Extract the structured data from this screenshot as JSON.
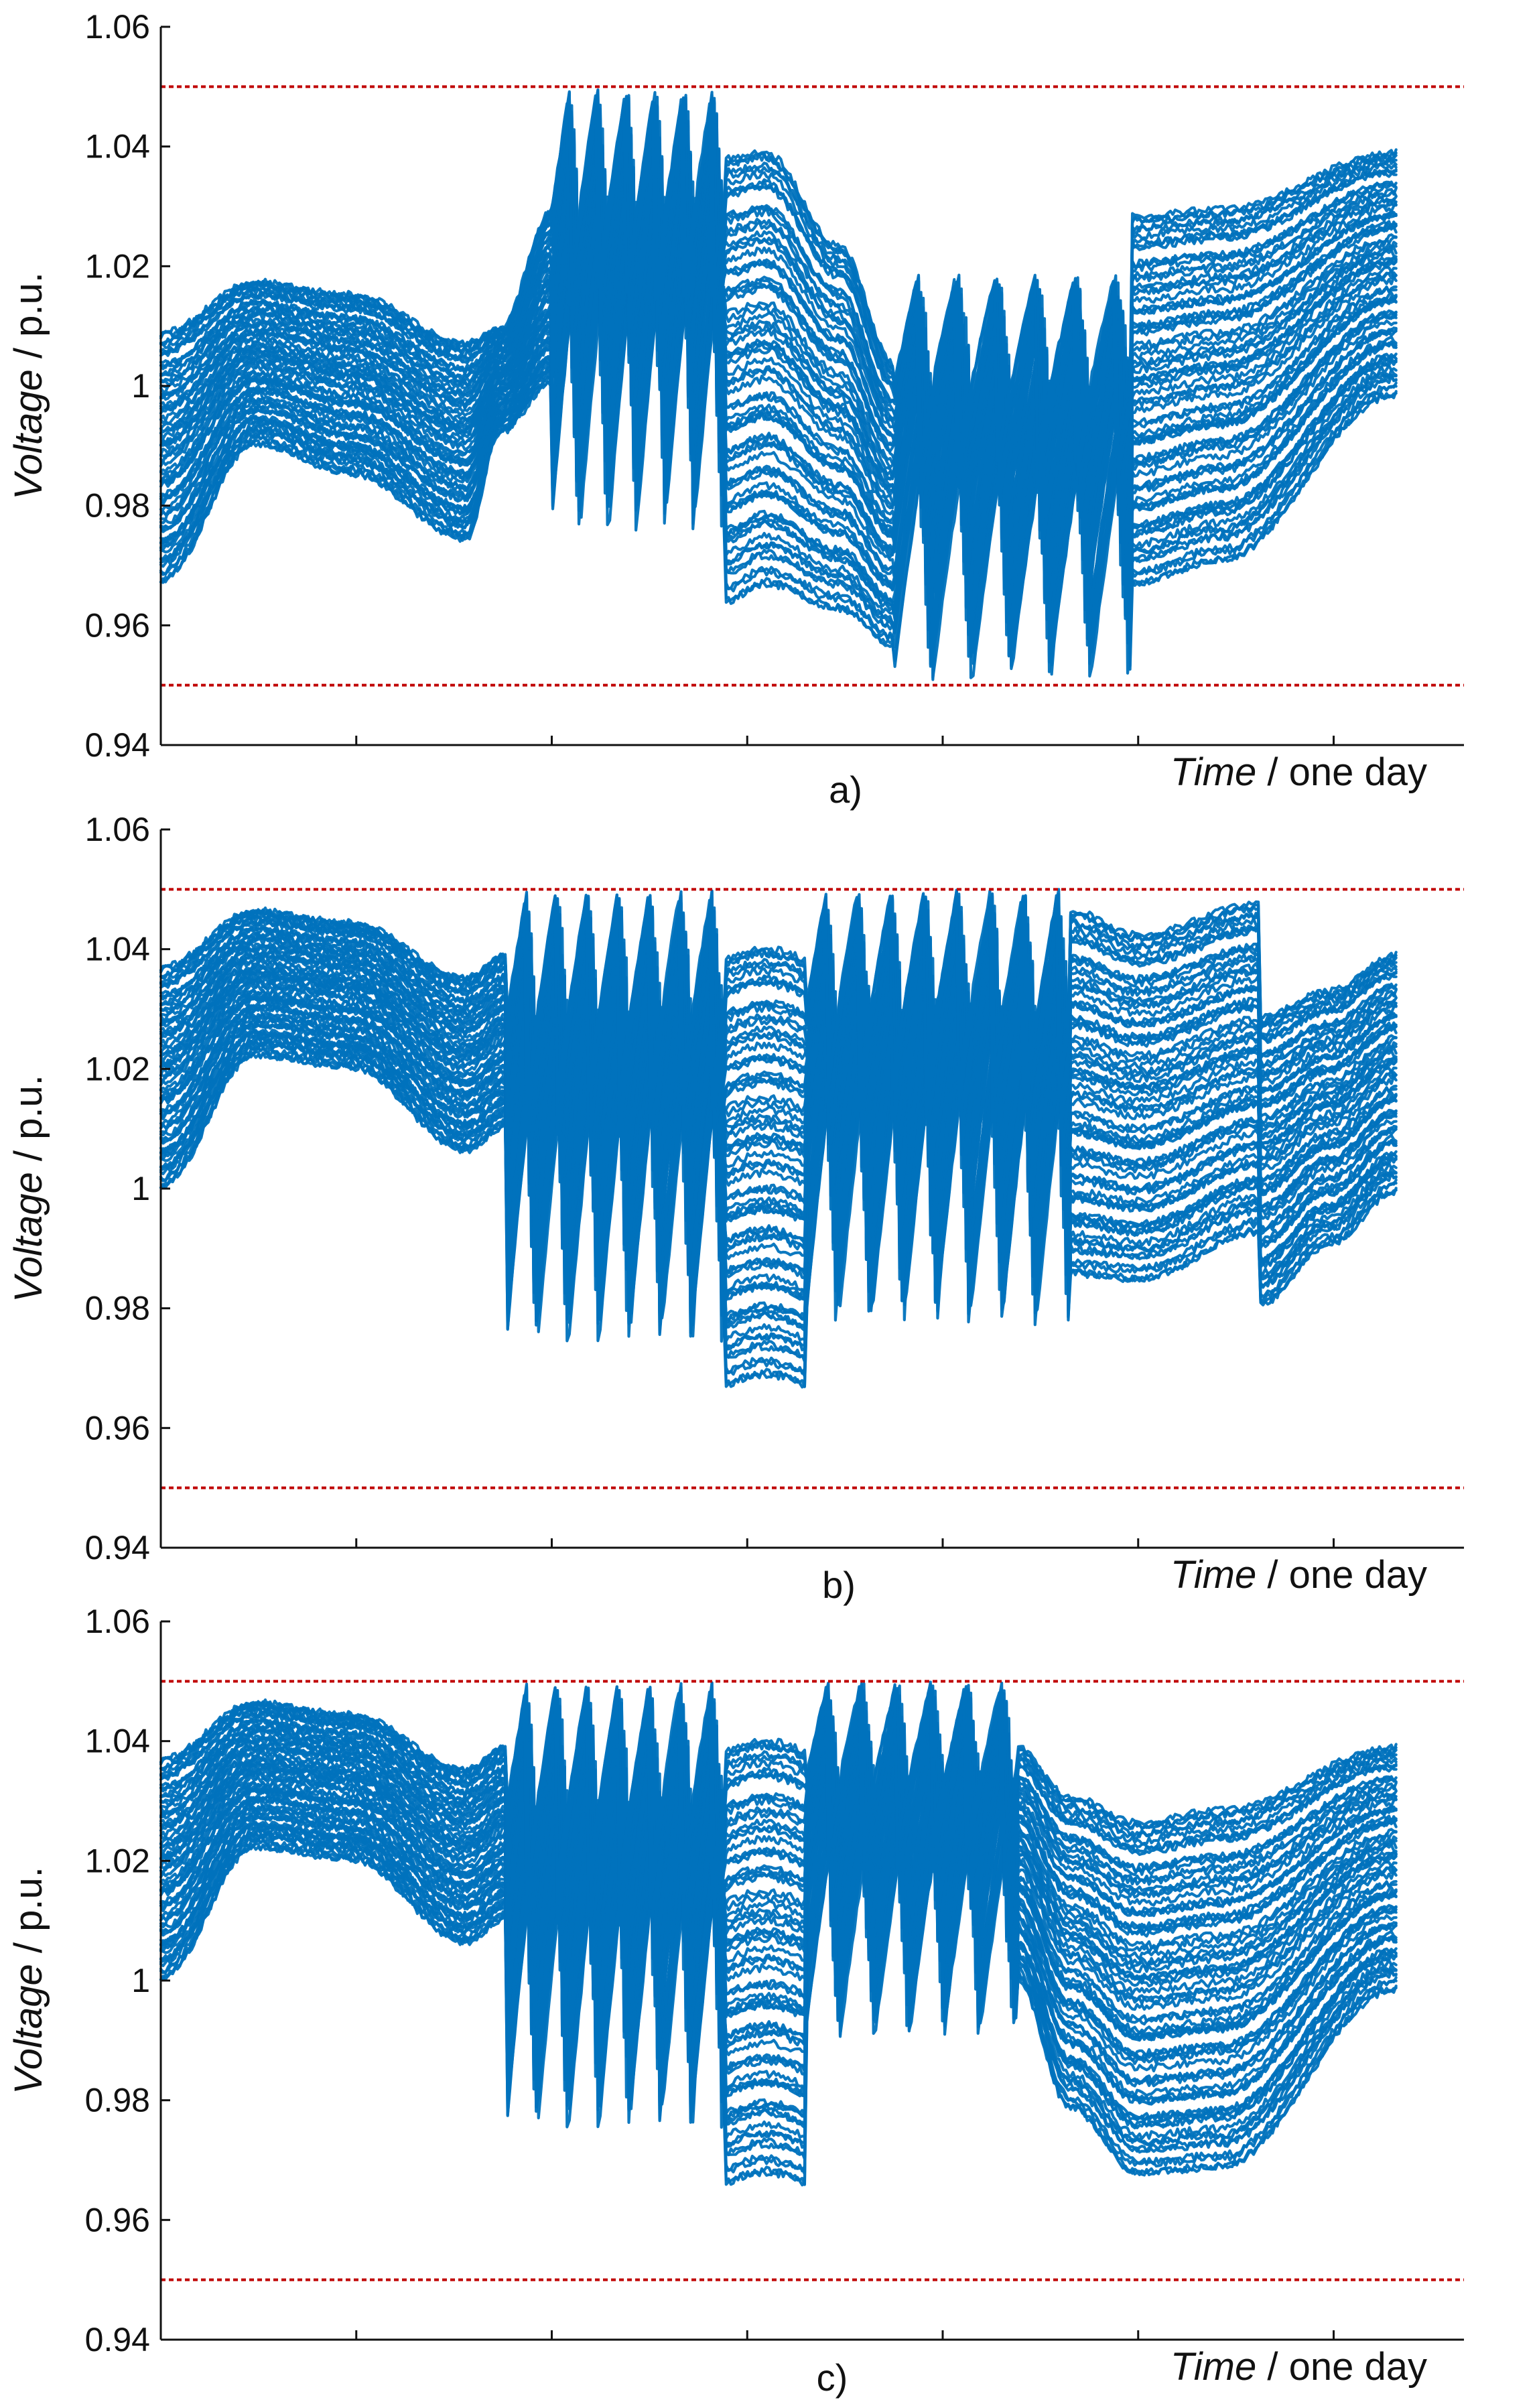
{
  "figure": {
    "line_color": "#0072BD",
    "limit_color": "#C00000",
    "axis_color": "#111111"
  },
  "chart_data": [
    {
      "type": "line",
      "panel_label": "a)",
      "xlabel_italic": "Time",
      "xlabel_rest": " / one day",
      "ylabel_italic": "Voltage",
      "ylabel_rest": " / p.u.",
      "ylim": [
        0.94,
        1.06
      ],
      "yticks": [
        0.94,
        0.96,
        0.98,
        1.0,
        1.02,
        1.04,
        1.06
      ],
      "ytick_labels": [
        "0.94",
        "0.96",
        "0.98",
        "1",
        "1.02",
        "1.04",
        "1.06"
      ],
      "xlim": [
        0,
        96
      ],
      "xticks": [
        0,
        14.4,
        28.8,
        43.2,
        57.6,
        72,
        86.4
      ],
      "upper_limit": 1.05,
      "lower_limit": 0.95,
      "x_end": 91,
      "n_buses": 72,
      "series_description": "Bus voltages of all network nodes over one day (one blue curve per bus); voltages spread between the dashed 0.95 and 1.05 p.u. limits",
      "segments": [
        {
          "x": [
            0,
            7,
            14,
            22.5
          ],
          "top": [
            1.01,
            1.018,
            1.016,
            1.008
          ],
          "bot": [
            0.967,
            0.99,
            0.985,
            0.974
          ]
        },
        {
          "x": [
            22.5,
            25,
            28.8
          ],
          "top": [
            1.008,
            1.01,
            1.03
          ],
          "bot": [
            0.974,
            0.992,
            1.0
          ],
          "ramp": "up"
        },
        {
          "x": [
            28.8,
            41.5
          ],
          "top": [
            1.05,
            1.05
          ],
          "bot": [
            0.975,
            0.975
          ],
          "teeth": 6
        },
        {
          "x": [
            41.5,
            44.5,
            50,
            54
          ],
          "top": [
            1.04,
            1.041,
            1.025,
            1.005
          ],
          "bot": [
            0.963,
            0.966,
            0.962,
            0.956
          ],
          "ramp": "down"
        },
        {
          "x": [
            54,
            71.5
          ],
          "top": [
            1.019,
            1.019
          ],
          "bot": [
            0.95,
            0.95
          ],
          "teeth": 6
        },
        {
          "x": [
            71.5,
            78,
            91
          ],
          "top": [
            1.03,
            1.031,
            1.04
          ],
          "bot": [
            0.966,
            0.97,
            0.998
          ]
        }
      ]
    },
    {
      "type": "line",
      "panel_label": "b)",
      "xlabel_italic": "Time",
      "xlabel_rest": " / one day",
      "ylabel_italic": "Voltage",
      "ylabel_rest": " / p.u.",
      "ylim": [
        0.94,
        1.06
      ],
      "yticks": [
        0.94,
        0.96,
        0.98,
        1.0,
        1.02,
        1.04,
        1.06
      ],
      "ytick_labels": [
        "0.94",
        "0.96",
        "0.98",
        "1",
        "1.02",
        "1.04",
        "1.06"
      ],
      "xlim": [
        0,
        96
      ],
      "xticks": [
        0,
        14.4,
        28.8,
        43.2,
        57.6,
        72,
        86.4
      ],
      "upper_limit": 1.05,
      "lower_limit": 0.95,
      "x_end": 91,
      "n_buses": 72,
      "series_description": "Bus voltages of all network nodes over one day (one blue curve per bus); voltages kept within the dashed 0.95 and 1.05 p.u. limits",
      "segments": [
        {
          "x": [
            0,
            7,
            14,
            22.5
          ],
          "top": [
            1.038,
            1.047,
            1.045,
            1.036
          ],
          "bot": [
            1.0,
            1.022,
            1.02,
            1.006
          ]
        },
        {
          "x": [
            22.5,
            25.5
          ],
          "top": [
            1.036,
            1.04
          ],
          "bot": [
            1.006,
            1.01
          ]
        },
        {
          "x": [
            25.5,
            41.5
          ],
          "top": [
            1.05,
            1.05
          ],
          "bot": [
            0.973,
            0.973
          ],
          "teeth": 7
        },
        {
          "x": [
            41.5,
            47.5
          ],
          "top": [
            1.04,
            1.04
          ],
          "bot": [
            0.966,
            0.966
          ],
          "boxcar": true
        },
        {
          "x": [
            47.5,
            67
          ],
          "top": [
            1.05,
            1.05
          ],
          "bot": [
            0.976,
            0.976
          ],
          "teeth": 8
        },
        {
          "x": [
            67,
            72,
            81
          ],
          "top": [
            1.048,
            1.044,
            1.049
          ],
          "bot": [
            0.985,
            0.984,
            0.992
          ]
        },
        {
          "x": [
            81,
            86,
            91
          ],
          "top": [
            1.03,
            1.034,
            1.04
          ],
          "bot": [
            0.98,
            0.99,
            0.999
          ]
        }
      ]
    },
    {
      "type": "line",
      "panel_label": "c)",
      "xlabel_italic": "Time",
      "xlabel_rest": " / one day",
      "ylabel_italic": "Voltage",
      "ylabel_rest": " / p.u.",
      "ylim": [
        0.94,
        1.06
      ],
      "yticks": [
        0.94,
        0.96,
        0.98,
        1.0,
        1.02,
        1.04,
        1.06
      ],
      "ytick_labels": [
        "0.94",
        "0.96",
        "0.98",
        "1",
        "1.02",
        "1.04",
        "1.06"
      ],
      "xlim": [
        0,
        96
      ],
      "xticks": [
        0,
        14.4,
        28.8,
        43.2,
        57.6,
        72,
        86.4
      ],
      "upper_limit": 1.05,
      "lower_limit": 0.95,
      "x_end": 91,
      "n_buses": 72,
      "series_description": "Bus voltages of all network nodes over one day (one blue curve per bus); voltages kept within the dashed 0.95 and 1.05 p.u. limits",
      "segments": [
        {
          "x": [
            0,
            7,
            14,
            22.5
          ],
          "top": [
            1.038,
            1.047,
            1.045,
            1.036
          ],
          "bot": [
            1.0,
            1.022,
            1.02,
            1.006
          ]
        },
        {
          "x": [
            22.5,
            25.5
          ],
          "top": [
            1.036,
            1.04
          ],
          "bot": [
            1.006,
            1.01
          ]
        },
        {
          "x": [
            25.5,
            41.5
          ],
          "top": [
            1.05,
            1.05
          ],
          "bot": [
            0.974,
            0.974
          ],
          "teeth": 7
        },
        {
          "x": [
            41.5,
            47.5
          ],
          "top": [
            1.04,
            1.04
          ],
          "bot": [
            0.965,
            0.965
          ],
          "boxcar": true
        },
        {
          "x": [
            47.5,
            63
          ],
          "top": [
            1.05,
            1.05
          ],
          "bot": [
            0.99,
            0.99
          ],
          "teeth": 6
        },
        {
          "x": [
            63,
            67,
            72,
            78,
            91
          ],
          "top": [
            1.04,
            1.032,
            1.028,
            1.03,
            1.04
          ],
          "bot": [
            1.0,
            0.978,
            0.967,
            0.968,
            0.998
          ]
        }
      ]
    }
  ]
}
